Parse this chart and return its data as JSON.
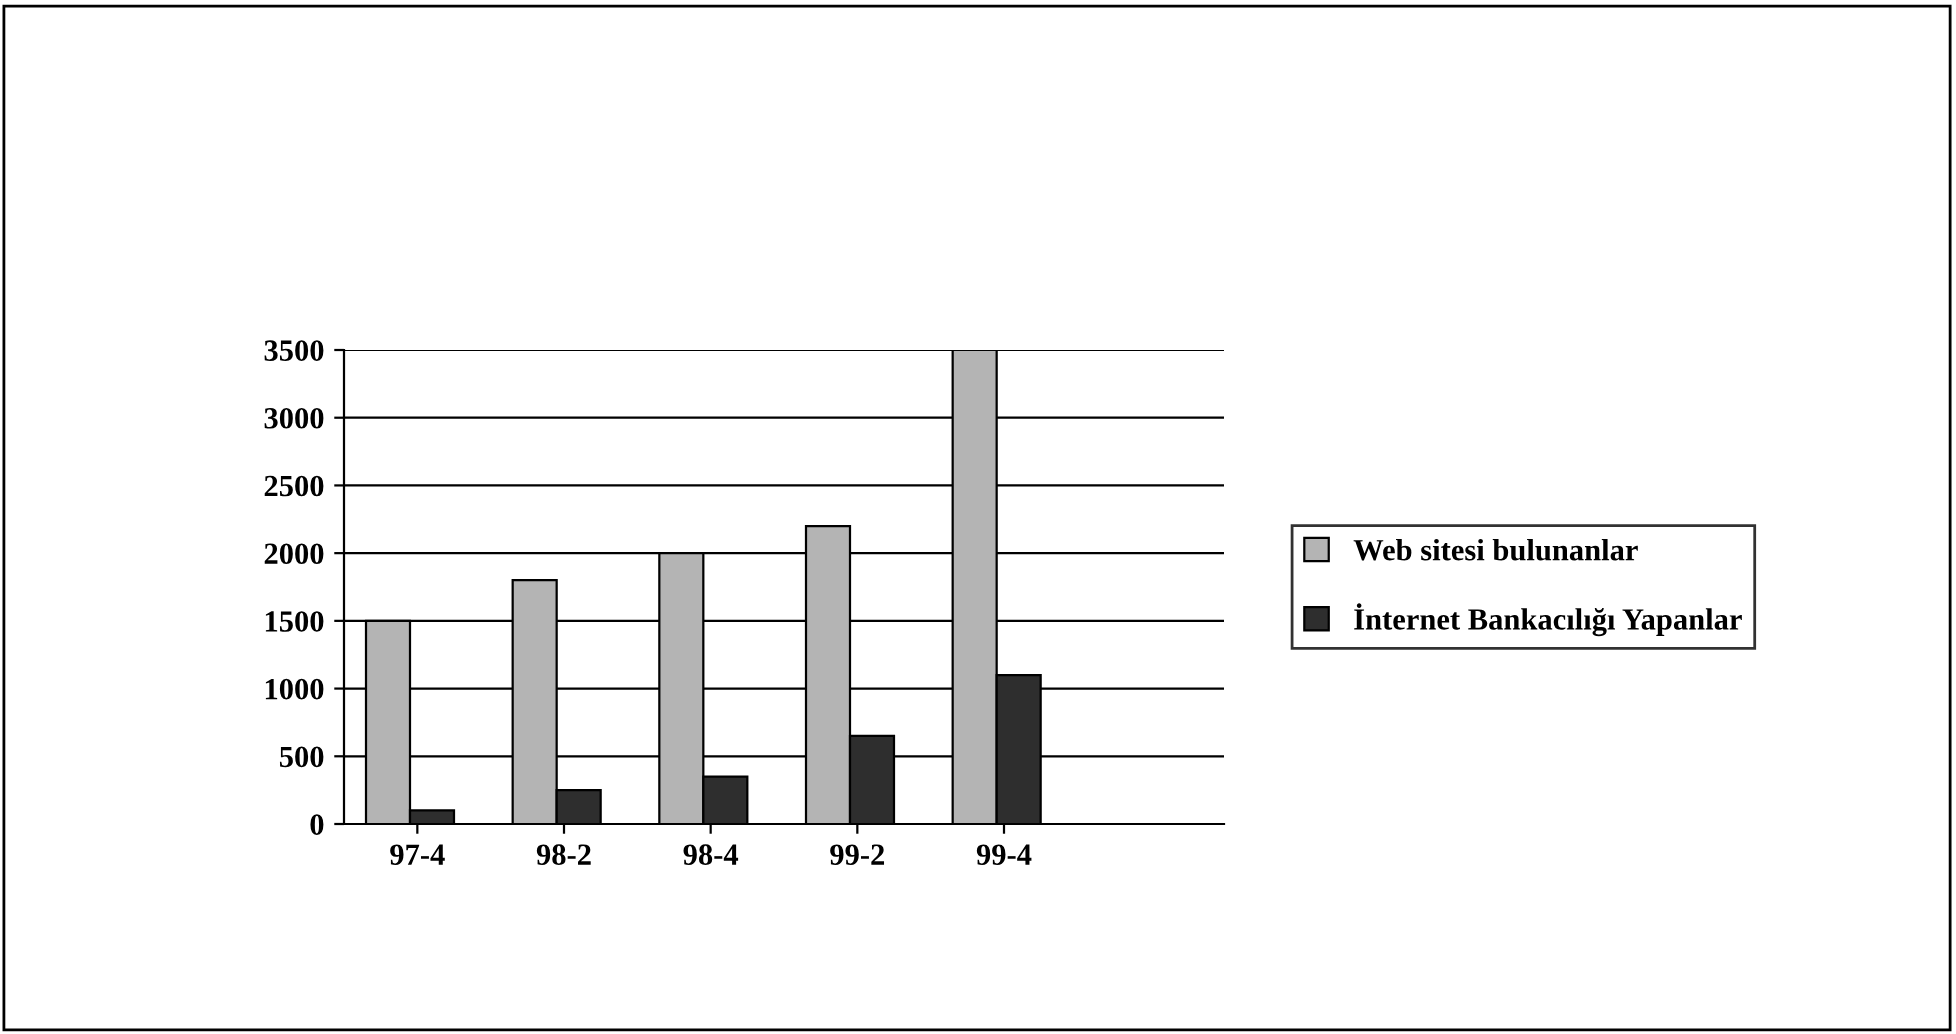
{
  "chart_data": {
    "type": "bar",
    "categories": [
      "97-4",
      "98-2",
      "98-4",
      "99-2",
      "99-4"
    ],
    "series": [
      {
        "name": "Web sitesi bulunanlar",
        "color": "#b4b4b4",
        "values": [
          1500,
          1800,
          2000,
          2200,
          3500
        ]
      },
      {
        "name": "İnternet Bankacılığı Yapanlar",
        "color": "#2e2e2e",
        "values": [
          100,
          250,
          350,
          650,
          1100
        ]
      }
    ],
    "ylim": [
      0,
      3500
    ],
    "yticks": [
      0,
      500,
      1000,
      1500,
      2000,
      2500,
      3000,
      3500
    ],
    "grid": "y",
    "legend": "right"
  }
}
